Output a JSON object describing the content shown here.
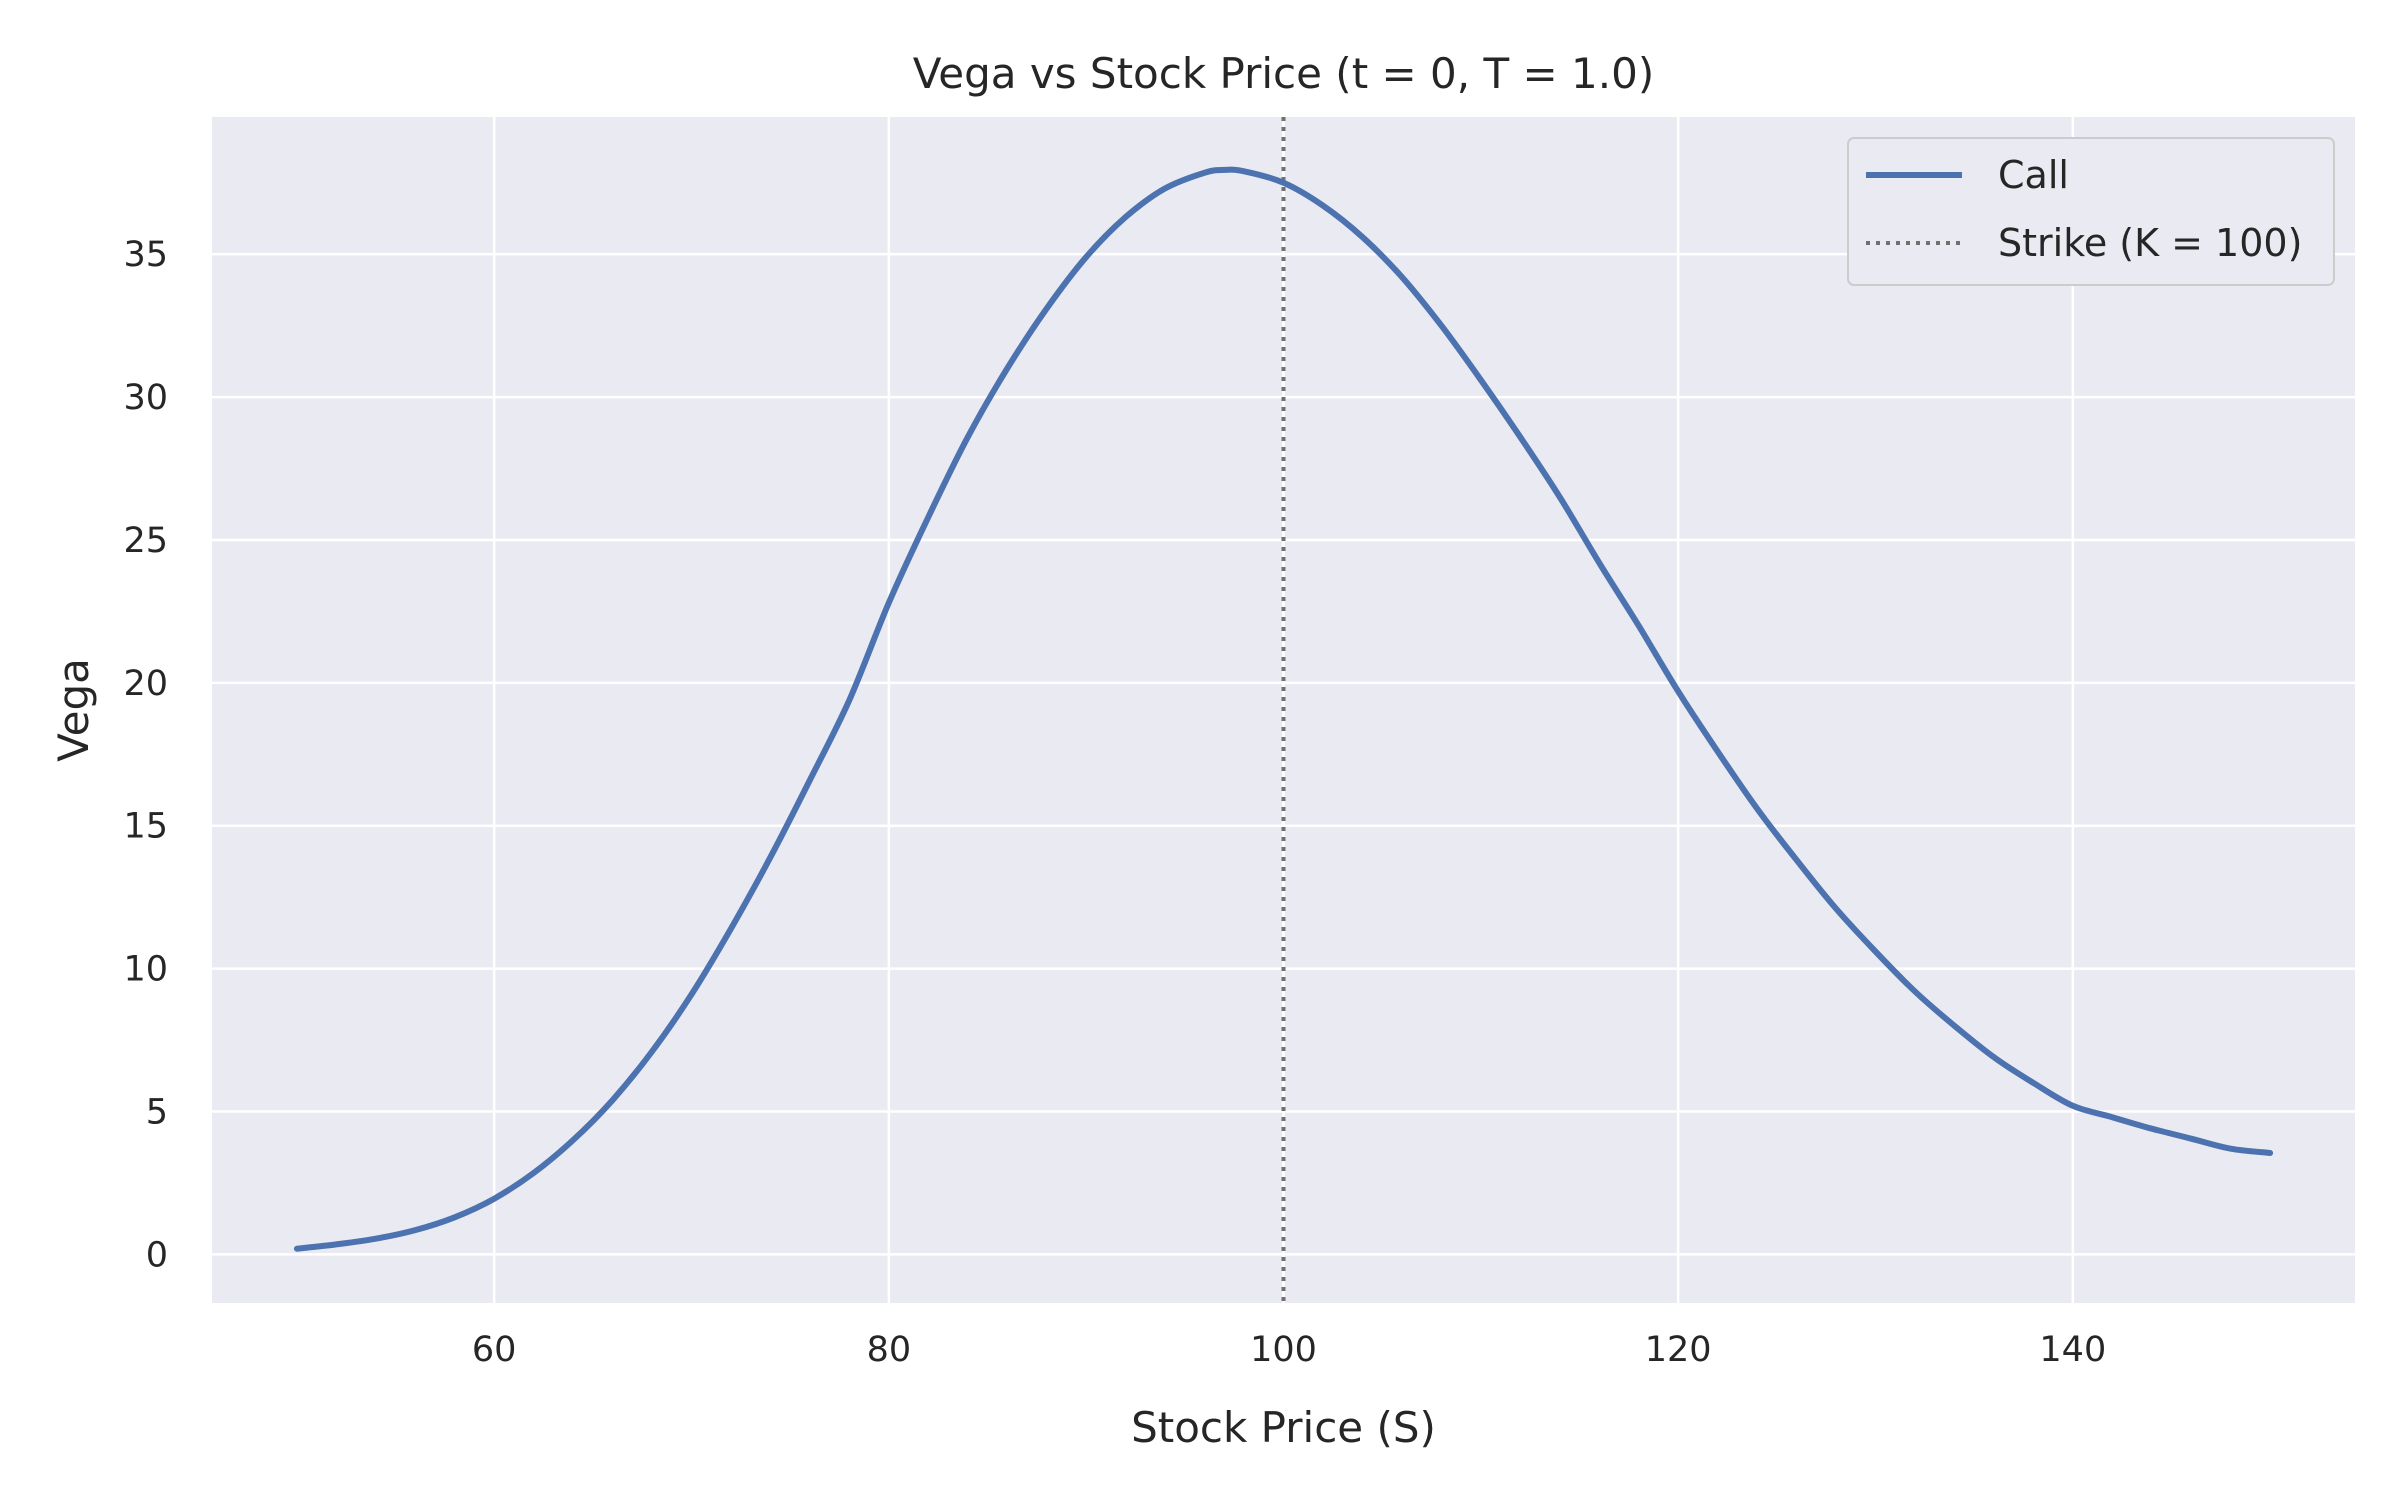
{
  "chart_data": {
    "type": "line",
    "title": "Vega vs Stock Price (t = 0, T = 1.0)",
    "xlabel": "Stock Price (S)",
    "ylabel": "Vega",
    "xlim": [
      45.7,
      154.3
    ],
    "ylim": [
      -1.7,
      39.8
    ],
    "xticks": [
      60,
      80,
      100,
      120,
      140
    ],
    "yticks": [
      0,
      5,
      10,
      15,
      20,
      25,
      30,
      35
    ],
    "grid": true,
    "legend_position": "top-right",
    "colors": {
      "background": "#eaeaf2",
      "call": "#4c72b0",
      "strike": "#707070"
    },
    "series": [
      {
        "name": "Call",
        "style": "solid",
        "x": [
          50,
          52,
          54,
          56,
          58,
          60,
          62,
          64,
          66,
          68,
          70,
          72,
          74,
          76,
          78,
          80,
          82,
          84,
          86,
          88,
          90,
          92,
          94,
          96,
          97,
          98,
          100,
          102,
          104,
          106,
          108,
          110,
          112,
          114,
          116,
          118,
          120,
          122,
          124,
          126,
          128,
          130,
          132,
          134,
          136,
          138,
          140,
          142,
          144,
          146,
          148,
          150
        ],
        "y": [
          0.2,
          0.35,
          0.55,
          0.85,
          1.3,
          1.95,
          2.85,
          4.0,
          5.4,
          7.1,
          9.1,
          11.4,
          13.9,
          16.6,
          19.4,
          22.8,
          25.8,
          28.6,
          31.0,
          33.1,
          34.9,
          36.3,
          37.3,
          37.85,
          37.95,
          37.9,
          37.5,
          36.7,
          35.6,
          34.2,
          32.5,
          30.6,
          28.6,
          26.5,
          24.2,
          22.0,
          19.7,
          17.6,
          15.6,
          13.8,
          12.1,
          10.6,
          9.2,
          8.0,
          6.9,
          6.0,
          5.2,
          4.8,
          4.4,
          4.05,
          3.7,
          3.55
        ]
      },
      {
        "name": "Strike (K = 100)",
        "style": "dotted",
        "x_value": 100
      }
    ]
  }
}
